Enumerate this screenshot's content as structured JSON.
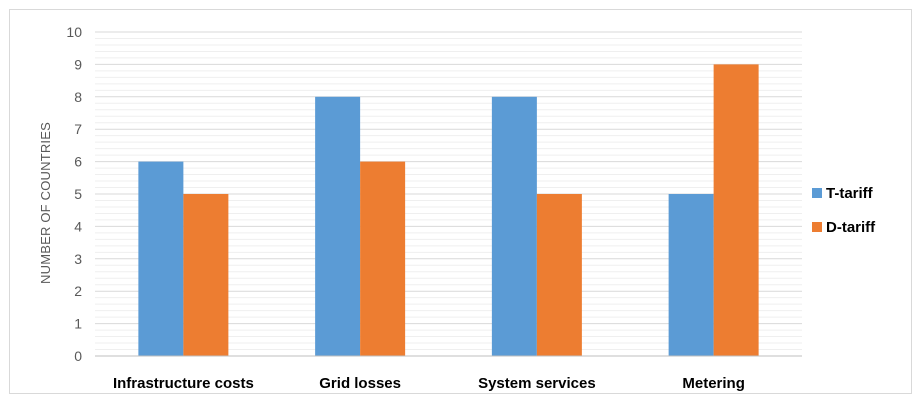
{
  "chart_data": {
    "type": "bar",
    "title": "",
    "xlabel": "",
    "ylabel": "NUMBER OF COUNTRIES",
    "categories": [
      "Infrastructure costs",
      "Grid losses",
      "System services",
      "Metering"
    ],
    "series": [
      {
        "name": "T-tariff",
        "color": "#5b9bd5",
        "values": [
          6,
          8,
          8,
          5
        ]
      },
      {
        "name": "D-tariff",
        "color": "#ed7d31",
        "values": [
          5,
          6,
          5,
          9
        ]
      }
    ],
    "ylim": [
      0,
      10
    ],
    "yticks": [
      "0",
      "1",
      "2",
      "3",
      "4",
      "5",
      "6",
      "7",
      "8",
      "9",
      "10"
    ],
    "grid": true,
    "legend_position": "right"
  }
}
